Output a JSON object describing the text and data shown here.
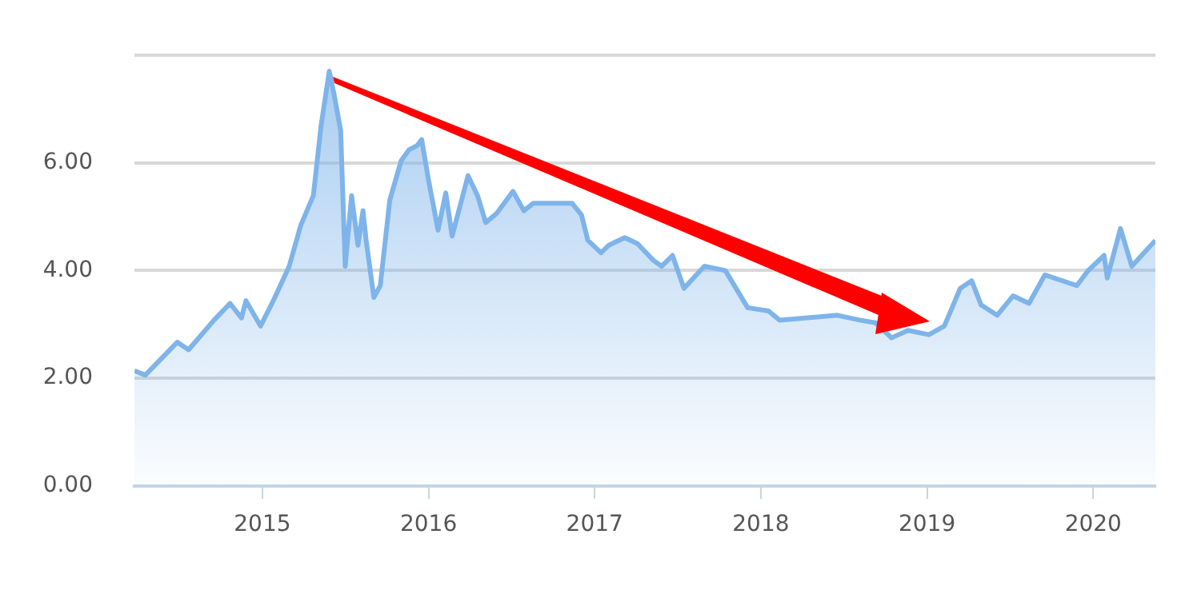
{
  "chart_data": {
    "type": "area",
    "x": [
      "2014-03-26",
      "2014-04-19",
      "2014-06-28",
      "2014-07-23",
      "2014-09-17",
      "2014-10-22",
      "2014-11-16",
      "2014-11-26",
      "2014-12-28",
      "2015-01-25",
      "2015-03-01",
      "2015-03-26",
      "2015-04-23",
      "2015-05-10",
      "2015-05-28",
      "2015-06-08",
      "2015-06-22",
      "2015-07-02",
      "2015-07-16",
      "2015-07-30",
      "2015-08-10",
      "2015-08-17",
      "2015-09-03",
      "2015-09-17",
      "2015-10-08",
      "2015-11-02",
      "2015-11-19",
      "2015-12-07",
      "2015-12-17",
      "2016-01-01",
      "2016-01-22",
      "2016-02-08",
      "2016-02-22",
      "2016-03-28",
      "2016-04-18",
      "2016-05-06",
      "2016-05-30",
      "2016-07-05",
      "2016-07-29",
      "2016-08-19",
      "2016-10-08",
      "2016-11-12",
      "2016-12-03",
      "2016-12-17",
      "2017-01-15",
      "2017-02-01",
      "2017-03-08",
      "2017-04-05",
      "2017-05-10",
      "2017-05-28",
      "2017-06-21",
      "2017-07-16",
      "2017-08-30",
      "2017-10-15",
      "2017-12-03",
      "2018-01-18",
      "2018-02-11",
      "2018-03-28",
      "2018-05-13",
      "2018-06-18",
      "2018-08-06",
      "2018-09-10",
      "2018-10-15",
      "2018-11-20",
      "2019-01-05",
      "2019-02-08",
      "2019-03-15",
      "2019-04-09",
      "2019-04-30",
      "2019-06-04",
      "2019-07-09",
      "2019-08-13",
      "2019-09-17",
      "2019-11-26",
      "2019-12-21",
      "2020-01-25",
      "2020-02-01",
      "2020-03-01",
      "2020-03-26",
      "2020-05-17"
    ],
    "series": [
      {
        "color": "#7eb4ea",
        "values": [
          2.14,
          2.06,
          2.67,
          2.53,
          3.08,
          3.39,
          3.12,
          3.44,
          2.97,
          3.44,
          4.08,
          4.83,
          5.39,
          6.69,
          7.7,
          7.25,
          6.6,
          4.08,
          5.39,
          4.47,
          5.11,
          4.56,
          3.5,
          3.72,
          5.31,
          6.04,
          6.24,
          6.32,
          6.43,
          5.68,
          4.75,
          5.44,
          4.64,
          5.76,
          5.39,
          4.89,
          5.06,
          5.47,
          5.11,
          5.25,
          5.25,
          5.25,
          5.03,
          4.56,
          4.33,
          4.47,
          4.61,
          4.5,
          4.19,
          4.08,
          4.28,
          3.67,
          4.08,
          4.0,
          3.31,
          3.25,
          3.08,
          null,
          null,
          3.17,
          3.08,
          3.03,
          2.75,
          2.89,
          2.81,
          2.97,
          3.67,
          3.81,
          3.36,
          3.17,
          3.53,
          3.39,
          3.92,
          3.72,
          4.0,
          4.28,
          3.86,
          4.78,
          4.08,
          4.56
        ]
      }
    ],
    "xlim": [
      "2014-03-26",
      "2020-05-17"
    ],
    "xticks": [
      "2015",
      "2016",
      "2017",
      "2018",
      "2019",
      "2020"
    ],
    "ylim": [
      0,
      8
    ],
    "yticks": [
      {
        "value": 0,
        "label": "0.00"
      },
      {
        "value": 2,
        "label": "2.00"
      },
      {
        "value": 4,
        "label": "4.00"
      },
      {
        "value": 6,
        "label": "6.00"
      },
      {
        "value": 8,
        "label": null
      }
    ],
    "grid": "y",
    "legend": false
  }
}
